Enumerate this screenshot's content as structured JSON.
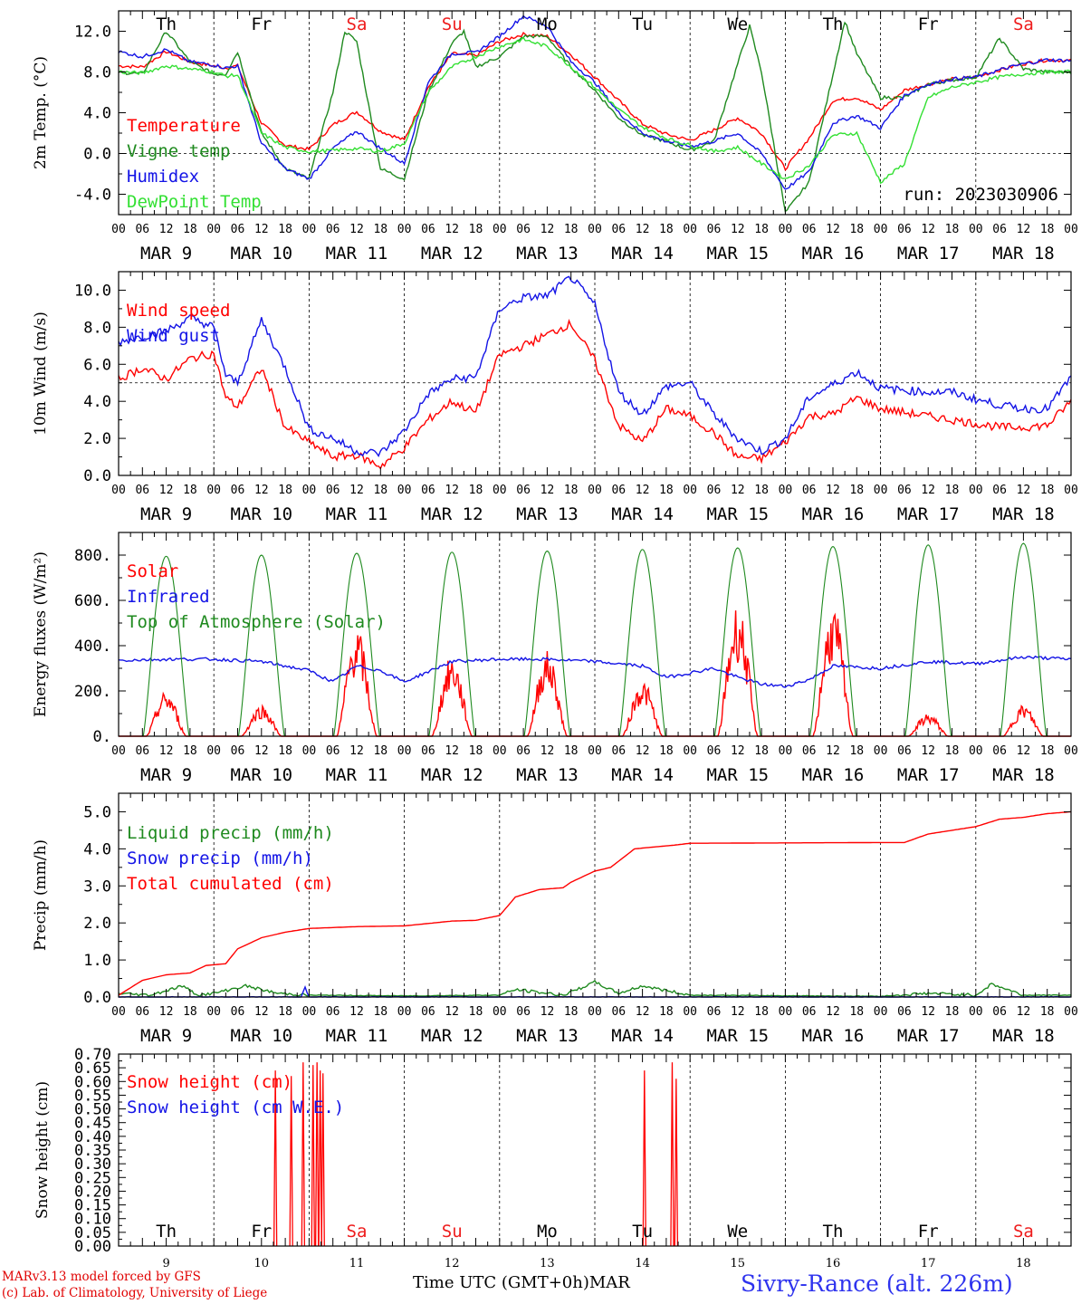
{
  "colors": {
    "red": "#ff0000",
    "green": "#1f8a1f",
    "blue": "#1414e6",
    "light_green": "#33e033",
    "weekend_day": "#ee1c1c",
    "station": "#2e33ee",
    "credit": "#e00000"
  },
  "footer": {
    "model": "MARv3.13 model forced by GFS",
    "lab": "(c) Lab. of Climatology, University of Liege",
    "axis_label": "Time UTC (GMT+0h)MAR",
    "station": "Sivry-Rance (alt. 226m)"
  },
  "chart_data": {
    "type": "line",
    "x_unit": "hours since MAR 9 00 UTC",
    "xlim": [
      0,
      240
    ],
    "day_labels": [
      "MAR  9",
      "MAR 10",
      "MAR 11",
      "MAR 12",
      "MAR 13",
      "MAR 14",
      "MAR 15",
      "MAR 16",
      "MAR 17",
      "MAR 18"
    ],
    "day_numbers": [
      "9",
      "10",
      "11",
      "12",
      "13",
      "14",
      "15",
      "16",
      "17",
      "18"
    ],
    "hour_ticks": [
      "00",
      "06",
      "12",
      "18"
    ],
    "last_tick": "00",
    "weekdays": [
      "Th",
      "Fr",
      "Sa",
      "Su",
      "Mo",
      "Tu",
      "We",
      "Th",
      "Fr",
      "Sa"
    ],
    "weekend_weekdays": [
      2,
      3,
      9
    ],
    "panels": [
      {
        "ylabel": "2m Temp. (°C)",
        "ylim": [
          -6,
          14
        ],
        "yticks": [
          -4,
          0,
          4,
          8,
          12
        ],
        "ytick_labels": [
          "-4.0",
          "0.0",
          "4.0",
          "8.0",
          "12.0"
        ],
        "ref_line": 0,
        "annotation": "run: 2023030906",
        "show_weekdays": "top",
        "series": [
          {
            "name": "Temperature",
            "color": "red",
            "x": [
              0,
              6,
              12,
              18,
              24,
              27,
              30,
              36,
              42,
              48,
              54,
              60,
              66,
              72,
              78,
              84,
              90,
              96,
              102,
              108,
              114,
              120,
              126,
              132,
              138,
              144,
              150,
              156,
              162,
              168,
              174,
              180,
              186,
              192,
              198,
              204,
              210,
              216,
              222,
              228,
              234,
              240
            ],
            "y": [
              8.6,
              8.5,
              10,
              9,
              8.6,
              8.4,
              8.6,
              3,
              0.8,
              0.4,
              2.8,
              4.1,
              2.2,
              1.3,
              6.5,
              9.8,
              9.6,
              11,
              11.7,
              11.5,
              9.7,
              7.5,
              5.2,
              2.9,
              1.9,
              1.3,
              2.3,
              3.5,
              2.0,
              -1.5,
              1.5,
              5.2,
              5.5,
              4.3,
              6.2,
              6.8,
              7.3,
              7.5,
              8.2,
              8.8,
              9.2,
              9.1
            ]
          },
          {
            "name": "Vigne temp",
            "color": "green",
            "x": [
              0,
              6,
              12,
              18,
              24,
              27,
              30,
              36,
              42,
              48,
              54,
              57,
              60,
              66,
              72,
              78,
              84,
              87,
              90,
              96,
              102,
              108,
              114,
              120,
              126,
              132,
              138,
              144,
              150,
              156,
              159,
              162,
              168,
              174,
              180,
              183,
              186,
              192,
              198,
              204,
              210,
              216,
              222,
              228,
              234,
              240
            ],
            "y": [
              8.0,
              7.8,
              12,
              9.0,
              7.8,
              7.8,
              10,
              2,
              -1.5,
              -2.5,
              6,
              12,
              11,
              -1.5,
              -2.5,
              6,
              10.8,
              12,
              8.5,
              9.5,
              11.5,
              11.5,
              8.5,
              6.2,
              3.5,
              1.8,
              1.2,
              0.3,
              1.2,
              8.8,
              12.5,
              8,
              -5.8,
              -2.8,
              7.8,
              13,
              9.8,
              5.5,
              5.5,
              6.8,
              7.2,
              7.5,
              11.3,
              8.3,
              8.0,
              8.0
            ]
          },
          {
            "name": "Humidex",
            "color": "blue",
            "x": [
              0,
              6,
              12,
              18,
              24,
              27,
              30,
              36,
              42,
              48,
              54,
              60,
              66,
              72,
              78,
              84,
              90,
              96,
              102,
              108,
              114,
              120,
              126,
              132,
              138,
              144,
              150,
              156,
              162,
              168,
              174,
              180,
              186,
              192,
              198,
              204,
              210,
              216,
              222,
              228,
              234,
              240
            ],
            "y": [
              10,
              9.5,
              10.2,
              9.0,
              8.7,
              8.4,
              8.6,
              1.0,
              -1.5,
              -2.5,
              0.5,
              2.2,
              0.5,
              -1.0,
              7.0,
              9.8,
              9.9,
              11.5,
              13.5,
              12.5,
              9.0,
              7.0,
              4.0,
              2.0,
              1.2,
              0.7,
              1.2,
              2.0,
              0.0,
              -3.5,
              -1.8,
              3.0,
              3.7,
              2.5,
              5.7,
              6.8,
              7.3,
              7.5,
              8.2,
              8.8,
              9.2,
              9.1
            ]
          },
          {
            "name": "DewPoint Temp",
            "color": "light_green",
            "x": [
              0,
              6,
              12,
              18,
              24,
              27,
              30,
              36,
              42,
              48,
              54,
              60,
              66,
              72,
              78,
              84,
              90,
              96,
              102,
              108,
              114,
              120,
              126,
              132,
              138,
              144,
              150,
              156,
              162,
              168,
              174,
              180,
              186,
              192,
              198,
              204,
              210,
              216,
              222,
              228,
              234,
              240
            ],
            "y": [
              8.0,
              7.9,
              8.6,
              8.3,
              8.0,
              7.6,
              7.7,
              2.0,
              0.6,
              0.2,
              0.3,
              0.5,
              0.2,
              1.0,
              6.0,
              8.5,
              9.5,
              10.5,
              11.2,
              10.5,
              8.5,
              6.5,
              4.3,
              2.6,
              1.5,
              0.8,
              0.2,
              0.6,
              -1.0,
              -2.5,
              -1.2,
              1.8,
              2.0,
              -2.8,
              -1.0,
              5.5,
              6.5,
              7.0,
              7.5,
              7.8,
              8.0,
              8.0
            ]
          }
        ]
      },
      {
        "ylabel": "10m Wind (m/s)",
        "ylim": [
          0,
          11
        ],
        "yticks": [
          0,
          2,
          4,
          6,
          8,
          10
        ],
        "ytick_labels": [
          "0.0",
          "2.0",
          "4.0",
          "6.0",
          "8.0",
          "10.0"
        ],
        "ref_line": 5,
        "series": [
          {
            "name": "Wind speed",
            "color": "red",
            "x": [
              0,
              6,
              12,
              18,
              24,
              27,
              30,
              36,
              42,
              48,
              54,
              60,
              66,
              72,
              78,
              84,
              90,
              96,
              102,
              108,
              114,
              120,
              126,
              132,
              138,
              144,
              150,
              156,
              162,
              168,
              174,
              180,
              186,
              192,
              198,
              204,
              210,
              216,
              222,
              228,
              234,
              240
            ],
            "y": [
              5.2,
              5.8,
              5.2,
              6.3,
              6.6,
              4.2,
              3.7,
              5.8,
              2.6,
              1.8,
              1.0,
              1.1,
              0.5,
              1.5,
              3.0,
              4.0,
              3.4,
              6.5,
              7.0,
              7.6,
              8.2,
              6.2,
              2.7,
              1.8,
              3.6,
              3.2,
              2.3,
              1.0,
              0.9,
              1.8,
              3.2,
              3.3,
              4.2,
              3.6,
              3.4,
              3.2,
              3.0,
              2.8,
              2.6,
              2.6,
              2.7,
              4.0
            ]
          },
          {
            "name": "Wind gust",
            "color": "blue",
            "x": [
              0,
              6,
              12,
              18,
              24,
              27,
              30,
              36,
              42,
              48,
              54,
              60,
              66,
              72,
              78,
              84,
              90,
              96,
              102,
              108,
              114,
              120,
              126,
              132,
              138,
              144,
              150,
              156,
              162,
              168,
              174,
              180,
              186,
              192,
              198,
              204,
              210,
              216,
              222,
              228,
              234,
              240
            ],
            "y": [
              7.2,
              7.5,
              7.8,
              8.5,
              8.0,
              5.4,
              5.0,
              8.4,
              5.8,
              2.5,
              2.0,
              1.3,
              1.2,
              2.4,
              4.4,
              5.2,
              5.3,
              9.0,
              9.6,
              9.7,
              10.7,
              9.2,
              4.5,
              3.3,
              4.8,
              5.0,
              3.3,
              2.0,
              1.3,
              2.0,
              4.2,
              4.9,
              5.6,
              4.7,
              4.6,
              4.5,
              4.5,
              4.1,
              3.8,
              3.6,
              3.6,
              5.3
            ]
          }
        ]
      },
      {
        "ylabel": "Energy fluxes (W/m²)",
        "ylim": [
          0,
          900
        ],
        "yticks": [
          0,
          200,
          400,
          600,
          800
        ],
        "ytick_labels": [
          "0.",
          "200.",
          "400.",
          "600.",
          "800."
        ],
        "series": [
          {
            "name": "Solar",
            "color": "red",
            "daily_peak": [
              200,
              140,
              480,
              360,
              380,
              250,
              590,
              580,
              100,
              140
            ]
          },
          {
            "name": "Infrared",
            "color": "blue",
            "x": [
              0,
              12,
              24,
              36,
              42,
              48,
              54,
              60,
              66,
              72,
              84,
              96,
              108,
              120,
              132,
              138,
              144,
              150,
              156,
              162,
              168,
              174,
              180,
              192,
              204,
              216,
              228,
              240
            ],
            "y": [
              335,
              340,
              340,
              330,
              310,
              290,
              240,
              310,
              290,
              240,
              330,
              340,
              340,
              330,
              310,
              260,
              280,
              300,
              260,
              230,
              220,
              250,
              310,
              300,
              330,
              320,
              350,
              340
            ]
          },
          {
            "name": "Top of Atmosphere (Solar)",
            "color": "green",
            "daily_peak": [
              795,
              800,
              808,
              813,
              818,
              825,
              832,
              838,
              845,
              852
            ]
          }
        ]
      },
      {
        "ylabel": "Precip (mm/h)",
        "ylim": [
          0,
          5.5
        ],
        "yticks": [
          0,
          1,
          2,
          3,
          4,
          5
        ],
        "ytick_labels": [
          "0.0",
          "1.0",
          "2.0",
          "3.0",
          "4.0",
          "5.0"
        ],
        "series": [
          {
            "name": "Liquid precip (mm/h)",
            "color": "green",
            "x": [
              0,
              8,
              16,
              20,
              24,
              32,
              36,
              40,
              48,
              72,
              96,
              100,
              108,
              112,
              120,
              126,
              132,
              144,
              192,
              204,
              216,
              220,
              228,
              240
            ],
            "y": [
              0.1,
              0.05,
              0.3,
              0.05,
              0.1,
              0.3,
              0.2,
              0.1,
              0.05,
              0.03,
              0.05,
              0.2,
              0.1,
              0.05,
              0.4,
              0.1,
              0.3,
              0.05,
              0.02,
              0.1,
              0.05,
              0.35,
              0.05,
              0.05
            ]
          },
          {
            "name": "Snow precip (mm/h)",
            "color": "blue",
            "x": [
              0,
              46,
              47,
              48,
              240
            ],
            "y": [
              0,
              0,
              0.3,
              0,
              0
            ]
          },
          {
            "name": "Total cumulated (cm)",
            "color": "red",
            "x": [
              0,
              6,
              12,
              18,
              22,
              27,
              30,
              36,
              42,
              48,
              60,
              72,
              84,
              90,
              96,
              100,
              106,
              112,
              114,
              120,
              124,
              130,
              140,
              144,
              192,
              198,
              204,
              216,
              222,
              228,
              234,
              240
            ],
            "y": [
              0.05,
              0.45,
              0.6,
              0.65,
              0.85,
              0.9,
              1.3,
              1.6,
              1.75,
              1.85,
              1.9,
              1.92,
              2.05,
              2.07,
              2.2,
              2.7,
              2.9,
              2.95,
              3.1,
              3.4,
              3.5,
              4.0,
              4.1,
              4.15,
              4.17,
              4.17,
              4.4,
              4.6,
              4.8,
              4.85,
              4.95,
              5.0
            ]
          }
        ]
      },
      {
        "ylabel": "Snow height (cm)",
        "ylim": [
          0,
          0.7
        ],
        "yticks": [
          0,
          0.05,
          0.1,
          0.15,
          0.2,
          0.25,
          0.3,
          0.35,
          0.4,
          0.45,
          0.5,
          0.55,
          0.6,
          0.65,
          0.7
        ],
        "ytick_labels": [
          "0.00",
          "0.05",
          "0.10",
          "0.15",
          "0.20",
          "0.25",
          "0.30",
          "0.35",
          "0.40",
          "0.45",
          "0.50",
          "0.55",
          "0.60",
          "0.65",
          "0.70"
        ],
        "show_weekdays": "bottom",
        "series": [
          {
            "name": "Snow height (cm)",
            "color": "red",
            "spikes": [
              [
                39.5,
                0.64
              ],
              [
                43.5,
                0.62
              ],
              [
                46.5,
                0.67
              ],
              [
                49.0,
                0.66
              ],
              [
                50.0,
                0.67
              ],
              [
                50.8,
                0.64
              ],
              [
                51.5,
                0.63
              ],
              [
                132.5,
                0.64
              ],
              [
                139.5,
                0.67
              ],
              [
                140.5,
                0.61
              ]
            ]
          },
          {
            "name": "Snow height (cm W.E.)",
            "color": "blue",
            "spikes": []
          }
        ]
      }
    ]
  }
}
